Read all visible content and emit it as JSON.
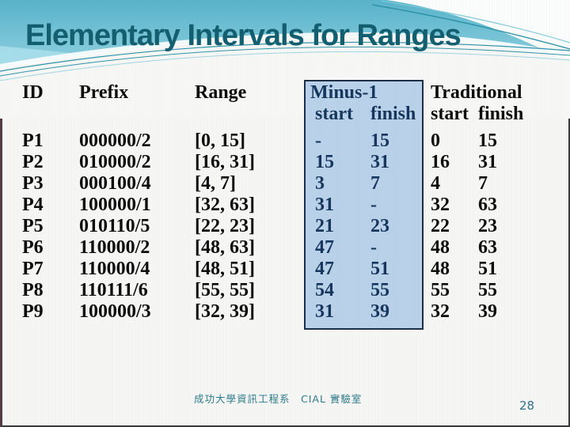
{
  "slide": {
    "title": "Elementary Intervals for Ranges",
    "footer": "成功大學資訊工程系　CIAL 實驗室",
    "page_number": "28"
  },
  "colors": {
    "title": "#135f70",
    "header_gradient_top": "#5ab4cb",
    "header_gradient_bottom": "#a6dbe8",
    "minus_box_background": "#b9d2ea",
    "minus_box_border": "#1c2f4a",
    "minus_text": "#17365d",
    "table_text": "#0d0d0d",
    "footer_text": "#2e7b8c"
  },
  "table": {
    "headers": {
      "id": "ID",
      "prefix": "Prefix",
      "range": "Range",
      "minus1": "Minus-1",
      "traditional": "Traditional",
      "start": "start",
      "finish": "finish"
    },
    "rows": [
      {
        "id": "P1",
        "prefix": "000000/2",
        "range": "[0, 15]",
        "m_start": "-",
        "m_finish": "15",
        "t_start": "0",
        "t_finish": "15"
      },
      {
        "id": "P2",
        "prefix": "010000/2",
        "range": "[16, 31]",
        "m_start": "15",
        "m_finish": "31",
        "t_start": "16",
        "t_finish": "31"
      },
      {
        "id": "P3",
        "prefix": "000100/4",
        "range": "[4, 7]",
        "m_start": "3",
        "m_finish": "7",
        "t_start": "4",
        "t_finish": "7"
      },
      {
        "id": "P4",
        "prefix": "100000/1",
        "range": "[32, 63]",
        "m_start": "31",
        "m_finish": "-",
        "t_start": "32",
        "t_finish": "63"
      },
      {
        "id": "P5",
        "prefix": "010110/5",
        "range": "[22, 23]",
        "m_start": "21",
        "m_finish": "23",
        "t_start": "22",
        "t_finish": "23"
      },
      {
        "id": "P6",
        "prefix": "110000/2",
        "range": "[48, 63]",
        "m_start": "47",
        "m_finish": "-",
        "t_start": "48",
        "t_finish": "63"
      },
      {
        "id": "P7",
        "prefix": "110000/4",
        "range": "[48, 51]",
        "m_start": "47",
        "m_finish": "51",
        "t_start": "48",
        "t_finish": "51"
      },
      {
        "id": "P8",
        "prefix": "110111/6",
        "range": "[55, 55]",
        "m_start": "54",
        "m_finish": "55",
        "t_start": "55",
        "t_finish": "55"
      },
      {
        "id": "P9",
        "prefix": "100000/3",
        "range": "[32, 39]",
        "m_start": "31",
        "m_finish": "39",
        "t_start": "32",
        "t_finish": "39"
      }
    ]
  }
}
